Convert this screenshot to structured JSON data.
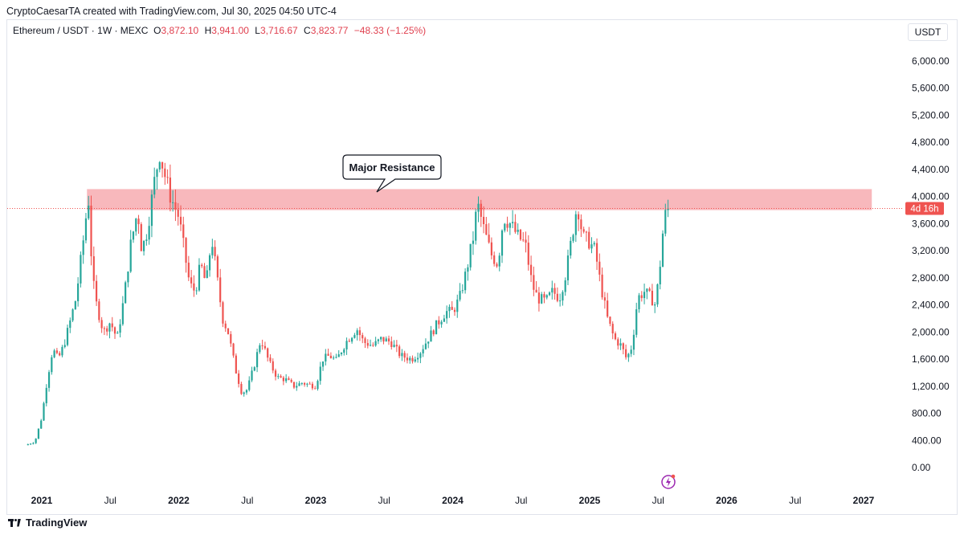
{
  "header": {
    "creator_line": "CryptoCaesarTA created with TradingView.com, Jul 30, 2025 04:50 UTC-4",
    "symbol": "Ethereum / USDT · 1W · MEXC",
    "open_label": "O",
    "open": "3,872.10",
    "high_label": "H",
    "high": "3,941.00",
    "low_label": "L",
    "low": "3,716.67",
    "close_label": "C",
    "close": "3,823.77",
    "change": "−48.33 (−1.25%)",
    "currency": "USDT"
  },
  "footer": {
    "brand": "TradingView"
  },
  "colors": {
    "up": "#26a69a",
    "down": "#ef5350",
    "zone": "#f8b4b8",
    "price_tag": "#ef5350",
    "axis_text": "#131722",
    "grid": "#f0f3fa"
  },
  "chart_data": {
    "type": "candlestick",
    "timeframe": "1W",
    "y_ticks": [
      "6,000.00",
      "5,600.00",
      "5,200.00",
      "4,800.00",
      "4,400.00",
      "4,000.00",
      "3,600.00",
      "3,200.00",
      "2,800.00",
      "2,400.00",
      "2,000.00",
      "1,600.00",
      "1,200.00",
      "800.00",
      "400.00",
      "0.00"
    ],
    "y_tick_values": [
      6000,
      5600,
      5200,
      4800,
      4400,
      4000,
      3600,
      3200,
      2800,
      2400,
      2000,
      1600,
      1200,
      800,
      400,
      0
    ],
    "x_ticks": [
      {
        "label": "2021",
        "t": 2021.0,
        "bold": true
      },
      {
        "label": "Jul",
        "t": 2021.5,
        "bold": false
      },
      {
        "label": "2022",
        "t": 2022.0,
        "bold": true
      },
      {
        "label": "Jul",
        "t": 2022.5,
        "bold": false
      },
      {
        "label": "2023",
        "t": 2023.0,
        "bold": true
      },
      {
        "label": "Jul",
        "t": 2023.5,
        "bold": false
      },
      {
        "label": "2024",
        "t": 2024.0,
        "bold": true
      },
      {
        "label": "Jul",
        "t": 2024.5,
        "bold": false
      },
      {
        "label": "2025",
        "t": 2025.0,
        "bold": true
      },
      {
        "label": "Jul",
        "t": 2025.5,
        "bold": false
      },
      {
        "label": "2026",
        "t": 2026.0,
        "bold": true
      },
      {
        "label": "Jul",
        "t": 2026.5,
        "bold": false
      },
      {
        "label": "2027",
        "t": 2027.0,
        "bold": true
      }
    ],
    "x_range": [
      2020.88,
      2027.15
    ],
    "y_range": [
      -150,
      6350
    ],
    "resistance_zone": {
      "low": 3800,
      "high": 4110,
      "t_start": 2021.33,
      "t_end": 2027.06
    },
    "annotation": "Major Resistance",
    "last_price": 3823.77,
    "countdown": "4d 16h",
    "close_path": [
      [
        2020.88,
        330
      ],
      [
        2020.95,
        380
      ],
      [
        2021.0,
        740
      ],
      [
        2021.04,
        1300
      ],
      [
        2021.08,
        1750
      ],
      [
        2021.12,
        1600
      ],
      [
        2021.16,
        1800
      ],
      [
        2021.2,
        2100
      ],
      [
        2021.25,
        2500
      ],
      [
        2021.3,
        3300
      ],
      [
        2021.34,
        4000
      ],
      [
        2021.37,
        2800
      ],
      [
        2021.4,
        2400
      ],
      [
        2021.45,
        2000
      ],
      [
        2021.5,
        2150
      ],
      [
        2021.55,
        1900
      ],
      [
        2021.6,
        2500
      ],
      [
        2021.65,
        3300
      ],
      [
        2021.7,
        3800
      ],
      [
        2021.73,
        3200
      ],
      [
        2021.77,
        3500
      ],
      [
        2021.82,
        4200
      ],
      [
        2021.86,
        4650
      ],
      [
        2021.9,
        4300
      ],
      [
        2021.94,
        4000
      ],
      [
        2022.0,
        3700
      ],
      [
        2022.04,
        3200
      ],
      [
        2022.08,
        2700
      ],
      [
        2022.12,
        2600
      ],
      [
        2022.16,
        3000
      ],
      [
        2022.2,
        2700
      ],
      [
        2022.24,
        3400
      ],
      [
        2022.28,
        2800
      ],
      [
        2022.32,
        2200
      ],
      [
        2022.36,
        2000
      ],
      [
        2022.42,
        1400
      ],
      [
        2022.46,
        1100
      ],
      [
        2022.5,
        1150
      ],
      [
        2022.55,
        1500
      ],
      [
        2022.6,
        1900
      ],
      [
        2022.66,
        1550
      ],
      [
        2022.72,
        1330
      ],
      [
        2022.78,
        1300
      ],
      [
        2022.84,
        1200
      ],
      [
        2022.9,
        1250
      ],
      [
        2023.0,
        1200
      ],
      [
        2023.05,
        1600
      ],
      [
        2023.1,
        1650
      ],
      [
        2023.15,
        1580
      ],
      [
        2023.22,
        1850
      ],
      [
        2023.3,
        2050
      ],
      [
        2023.35,
        1850
      ],
      [
        2023.42,
        1800
      ],
      [
        2023.48,
        1900
      ],
      [
        2023.55,
        1850
      ],
      [
        2023.62,
        1650
      ],
      [
        2023.7,
        1600
      ],
      [
        2023.76,
        1700
      ],
      [
        2023.82,
        1900
      ],
      [
        2023.88,
        2100
      ],
      [
        2023.95,
        2300
      ],
      [
        2024.0,
        2300
      ],
      [
        2024.05,
        2500
      ],
      [
        2024.1,
        2900
      ],
      [
        2024.15,
        3400
      ],
      [
        2024.18,
        3900
      ],
      [
        2024.23,
        3500
      ],
      [
        2024.28,
        3150
      ],
      [
        2024.33,
        3000
      ],
      [
        2024.37,
        3700
      ],
      [
        2024.42,
        3600
      ],
      [
        2024.48,
        3400
      ],
      [
        2024.53,
        3300
      ],
      [
        2024.58,
        2700
      ],
      [
        2024.62,
        2500
      ],
      [
        2024.68,
        2450
      ],
      [
        2024.73,
        2600
      ],
      [
        2024.78,
        2500
      ],
      [
        2024.83,
        2900
      ],
      [
        2024.87,
        3400
      ],
      [
        2024.91,
        3900
      ],
      [
        2024.95,
        3400
      ],
      [
        2024.99,
        3350
      ],
      [
        2025.04,
        3200
      ],
      [
        2025.08,
        2700
      ],
      [
        2025.13,
        2200
      ],
      [
        2025.18,
        1900
      ],
      [
        2025.23,
        1800
      ],
      [
        2025.27,
        1600
      ],
      [
        2025.31,
        1800
      ],
      [
        2025.35,
        2500
      ],
      [
        2025.4,
        2600
      ],
      [
        2025.45,
        2500
      ],
      [
        2025.48,
        2400
      ],
      [
        2025.51,
        2900
      ],
      [
        2025.54,
        3600
      ],
      [
        2025.56,
        3800
      ],
      [
        2025.58,
        3823.77
      ]
    ]
  }
}
